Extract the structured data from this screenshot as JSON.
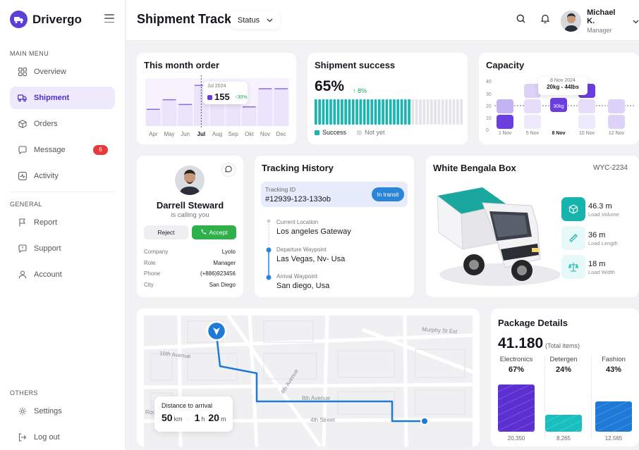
{
  "app": {
    "name": "Drivergo"
  },
  "colors": {
    "primary": "#5b3fd6",
    "teal": "#1ab5b0",
    "blue": "#2b84d8",
    "green": "#2fb04a",
    "red": "#e53b3b"
  },
  "sidebar": {
    "main_menu_label": "MAIN MENU",
    "general_label": "GENERAL",
    "others_label": "OTHERS",
    "items": [
      {
        "label": "Overview",
        "icon": "grid-icon"
      },
      {
        "label": "Shipment",
        "icon": "truck-icon",
        "active": true
      },
      {
        "label": "Orders",
        "icon": "box-icon"
      },
      {
        "label": "Message",
        "icon": "chat-icon",
        "badge": "6"
      },
      {
        "label": "Activity",
        "icon": "activity-icon"
      }
    ],
    "general_items": [
      {
        "label": "Report",
        "icon": "flag-icon"
      },
      {
        "label": "Support",
        "icon": "support-icon"
      },
      {
        "label": "Account",
        "icon": "user-icon"
      }
    ],
    "other_items": [
      {
        "label": "Settings",
        "icon": "gear-icon"
      },
      {
        "label": "Log out",
        "icon": "logout-icon"
      }
    ]
  },
  "header": {
    "title": "Shipment Track",
    "status_dropdown": "Status",
    "user": {
      "name": "Michael K.",
      "role": "Manager"
    }
  },
  "month_order": {
    "title": "This month order",
    "months": [
      "Apr",
      "May",
      "Jun",
      "Jul",
      "Aug",
      "Sep",
      "Okt",
      "Nov",
      "Dec"
    ],
    "levels": [
      0.35,
      0.55,
      0.45,
      0.85,
      0.6,
      0.78,
      0.4,
      0.78,
      0.78
    ],
    "active_month": "Jul",
    "tooltip": {
      "date": "Jul 2024",
      "value": "155",
      "change": "30%"
    }
  },
  "shipment_success": {
    "title": "Shipment success",
    "percent": "65%",
    "change": "8%",
    "bars_total": 40,
    "bars_success": 26,
    "legend_success": "Success",
    "legend_notyet": "Not yet"
  },
  "capacity": {
    "title": "Capacity",
    "y_ticks": [
      "40",
      "30",
      "20",
      "10",
      "0"
    ],
    "x_labels": [
      "1 Nov",
      "5 Nov",
      "8 Nov",
      "10 Nov",
      "12 Nov"
    ],
    "active_x": "8 Nov",
    "tooltip_date": "8 Nov 2024",
    "tooltip_value": "20kg - 44lbs",
    "active_label": "30kg"
  },
  "profile": {
    "name": "Darrell Steward",
    "status": "is calling you",
    "reject": "Reject",
    "accept": "Accept",
    "details": [
      {
        "k": "Company",
        "v": "Lyoto"
      },
      {
        "k": "Role",
        "v": "Manager"
      },
      {
        "k": "Phone",
        "v": "(+886)923456"
      },
      {
        "k": "City",
        "v": "San Diego"
      }
    ]
  },
  "tracking": {
    "title": "Tracking History",
    "id_label": "Tracking ID",
    "id_value": "#12939-123-133ob",
    "status": "In transit",
    "waypoints": [
      {
        "label": "Current Location",
        "value": "Los angeles Gateway"
      },
      {
        "label": "Departure Waypoint",
        "value": "Las Vegas, Nv- Usa"
      },
      {
        "label": "Arrival Waypoint",
        "value": "San diego, Usa"
      }
    ]
  },
  "box": {
    "title": "White Bengala Box",
    "code": "WYC-2234",
    "specs": [
      {
        "value": "46.3 m",
        "label": "Load Volume",
        "icon": "cube-icon"
      },
      {
        "value": "36 m",
        "label": "Load Length",
        "icon": "ruler-icon"
      },
      {
        "value": "18 m",
        "label": "Load Width",
        "icon": "scale-icon"
      }
    ]
  },
  "map": {
    "streets": [
      "Murphy St Ext",
      "16th Avenue",
      "4th Avenue",
      "8th Avenue",
      "4th Street",
      "Rock"
    ],
    "distance_label": "Distance to arrival",
    "km_value": "50",
    "km_unit": "km",
    "h_value": "1",
    "h_unit": "h",
    "min_value": "20",
    "min_unit": "m"
  },
  "package": {
    "title": "Package Details",
    "total": "41.180",
    "total_label": "(Total items)",
    "columns": [
      {
        "name": "Electronics",
        "pct": "67%",
        "count": "20.350",
        "level": 0.67,
        "color": "#5b2fd0"
      },
      {
        "name": "Detergen",
        "pct": "24%",
        "count": "8.265",
        "level": 0.24,
        "color": "#19bfbf"
      },
      {
        "name": "Fashion",
        "pct": "43%",
        "count": "12.565",
        "level": 0.43,
        "color": "#1e7ad6"
      }
    ]
  }
}
